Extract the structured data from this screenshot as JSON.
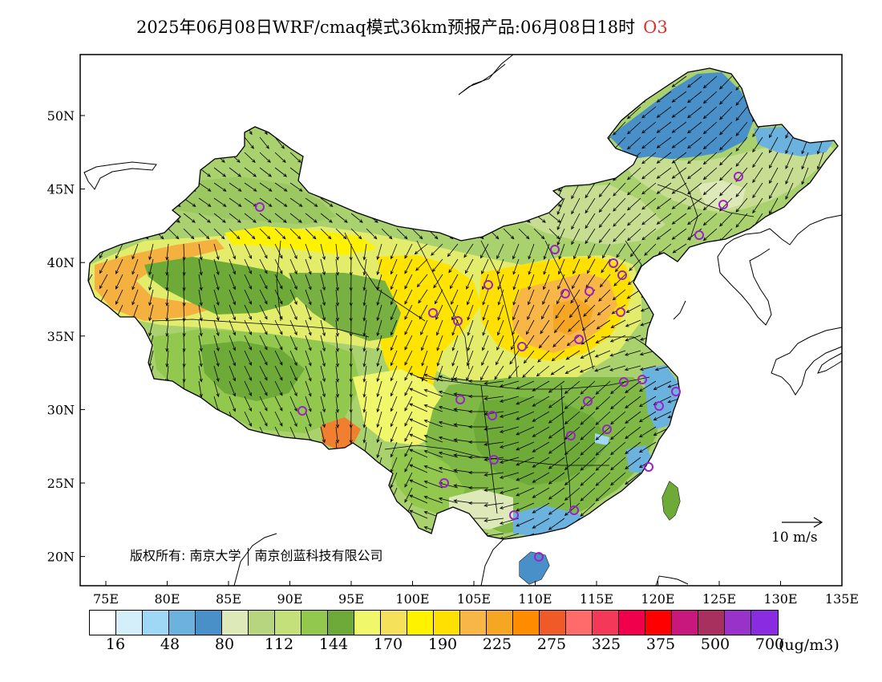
{
  "title": {
    "main": "2025年06月08日WRF/cmaq模式36km预报产品:06月08日18时",
    "pollutant": "O3"
  },
  "map": {
    "lon_ticks": [
      "75E",
      "80E",
      "85E",
      "90E",
      "95E",
      "100E",
      "105E",
      "110E",
      "115E",
      "120E",
      "125E",
      "130E",
      "135E"
    ],
    "lat_ticks": [
      "50N",
      "45N",
      "40N",
      "35N",
      "30N",
      "25N",
      "20N"
    ]
  },
  "copyright": {
    "prefix": "版权所有:",
    "org1": "南京大学",
    "org2": "南京创蓝科技有限公司"
  },
  "wind_reference": {
    "label": "10 m/s"
  },
  "colorbar": {
    "unit": "(ug/m3)",
    "labels": [
      "16",
      "48",
      "80",
      "112",
      "144",
      "170",
      "190",
      "225",
      "275",
      "325",
      "375",
      "500",
      "700"
    ],
    "colors": [
      "#ffffff",
      "#d4eefa",
      "#9ed8f5",
      "#6cb2df",
      "#4a90c8",
      "#dde9b8",
      "#b7d57e",
      "#c3e07a",
      "#93c84e",
      "#6eaa38",
      "#f1f76a",
      "#f5e25a",
      "#fff200",
      "#ffe000",
      "#f7b646",
      "#f5a623",
      "#ff8c00",
      "#f05a28",
      "#ff6a6a",
      "#f4385a",
      "#f0004c",
      "#ff0000",
      "#c8187e",
      "#a8305e",
      "#9832c8",
      "#8a2be2"
    ]
  },
  "legend_colors": {
    "low_blue": "#4a90c8",
    "green": "#93c84e",
    "dark_green": "#6eaa38",
    "yellow": "#fff200",
    "orange": "#f5a623",
    "station_marker": "#9b22c8"
  }
}
